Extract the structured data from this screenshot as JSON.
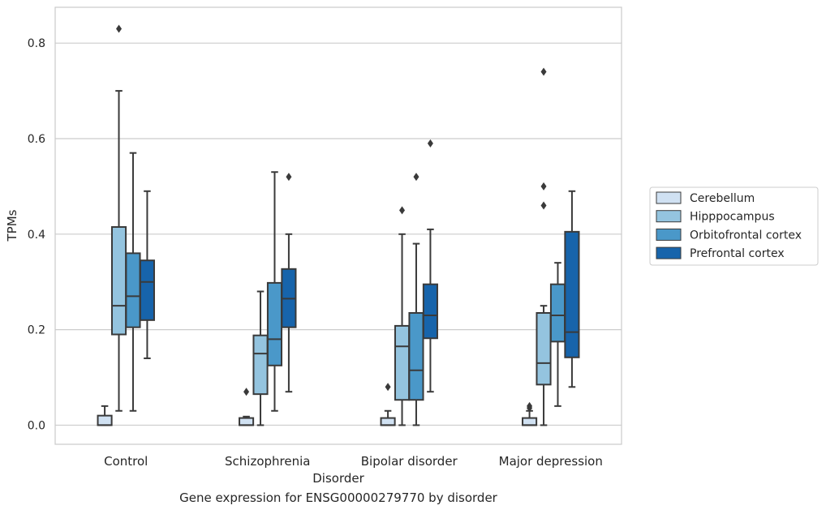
{
  "caption": "Gene expression for ENSG00000279770 by disorder",
  "chart_data": {
    "type": "box",
    "xlabel": "Disorder",
    "ylabel": "TPMs",
    "ylim": [
      -0.04,
      0.875
    ],
    "yticks": [
      0.0,
      0.2,
      0.4,
      0.6,
      0.8
    ],
    "ytick_labels": [
      "0.0",
      "0.2",
      "0.4",
      "0.6",
      "0.8"
    ],
    "grid": "horizontal",
    "legend_position": "right",
    "categories": [
      "Control",
      "Schizophrenia",
      "Bipolar disorder",
      "Major depression"
    ],
    "series": [
      {
        "name": "Cerebellum",
        "color": "#d0e1f2",
        "boxes": [
          {
            "whislo": 0.0,
            "q1": 0.0,
            "med": 0.0,
            "q3": 0.02,
            "whishi": 0.04,
            "fliers": []
          },
          {
            "whislo": 0.0,
            "q1": 0.0,
            "med": 0.0,
            "q3": 0.015,
            "whishi": 0.018,
            "fliers": [
              0.07
            ]
          },
          {
            "whislo": 0.0,
            "q1": 0.0,
            "med": 0.0,
            "q3": 0.015,
            "whishi": 0.03,
            "fliers": [
              0.08
            ]
          },
          {
            "whislo": 0.0,
            "q1": 0.0,
            "med": 0.0,
            "q3": 0.015,
            "whishi": 0.03,
            "fliers": [
              0.036,
              0.04
            ]
          }
        ]
      },
      {
        "name": "Hipppocampus",
        "color": "#94c4df",
        "boxes": [
          {
            "whislo": 0.03,
            "q1": 0.19,
            "med": 0.25,
            "q3": 0.415,
            "whishi": 0.7,
            "fliers": [
              0.83
            ]
          },
          {
            "whislo": 0.0,
            "q1": 0.065,
            "med": 0.15,
            "q3": 0.188,
            "whishi": 0.28,
            "fliers": []
          },
          {
            "whislo": 0.0,
            "q1": 0.053,
            "med": 0.165,
            "q3": 0.208,
            "whishi": 0.4,
            "fliers": [
              0.45
            ]
          },
          {
            "whislo": 0.0,
            "q1": 0.085,
            "med": 0.13,
            "q3": 0.235,
            "whishi": 0.25,
            "fliers": [
              0.46,
              0.5,
              0.74
            ]
          }
        ]
      },
      {
        "name": "Orbitofrontal cortex",
        "color": "#4a98c9",
        "boxes": [
          {
            "whislo": 0.03,
            "q1": 0.205,
            "med": 0.27,
            "q3": 0.36,
            "whishi": 0.57,
            "fliers": []
          },
          {
            "whislo": 0.03,
            "q1": 0.125,
            "med": 0.18,
            "q3": 0.298,
            "whishi": 0.53,
            "fliers": []
          },
          {
            "whislo": 0.0,
            "q1": 0.053,
            "med": 0.115,
            "q3": 0.235,
            "whishi": 0.38,
            "fliers": [
              0.52
            ]
          },
          {
            "whislo": 0.04,
            "q1": 0.175,
            "med": 0.23,
            "q3": 0.295,
            "whishi": 0.34,
            "fliers": []
          }
        ]
      },
      {
        "name": "Prefrontal cortex",
        "color": "#1764ab",
        "boxes": [
          {
            "whislo": 0.14,
            "q1": 0.22,
            "med": 0.3,
            "q3": 0.345,
            "whishi": 0.49,
            "fliers": []
          },
          {
            "whislo": 0.07,
            "q1": 0.205,
            "med": 0.265,
            "q3": 0.327,
            "whishi": 0.4,
            "fliers": [
              0.52
            ]
          },
          {
            "whislo": 0.07,
            "q1": 0.182,
            "med": 0.23,
            "q3": 0.295,
            "whishi": 0.41,
            "fliers": [
              0.59
            ]
          },
          {
            "whislo": 0.08,
            "q1": 0.142,
            "med": 0.195,
            "q3": 0.405,
            "whishi": 0.49,
            "fliers": []
          }
        ]
      }
    ]
  }
}
